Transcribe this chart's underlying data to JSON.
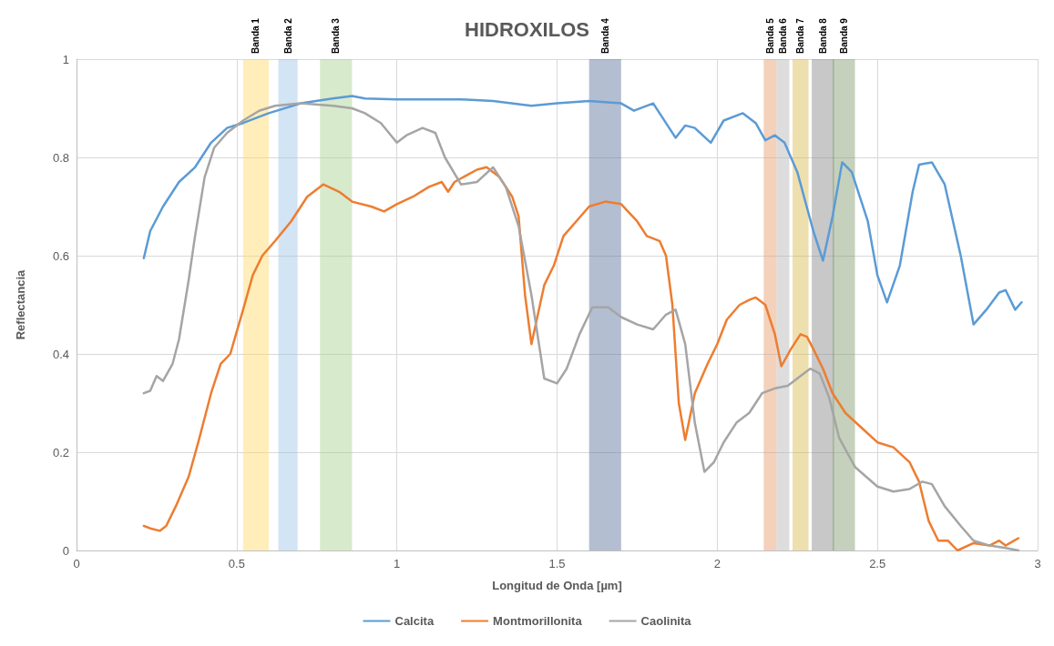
{
  "chart_data": {
    "type": "line",
    "title": "HIDROXILOS",
    "xlabel": "Longitud de Onda [µm]",
    "ylabel": "Reflectancia",
    "xlim": [
      0,
      3
    ],
    "xticks": [
      0,
      0.5,
      1,
      1.5,
      2,
      2.5,
      3
    ],
    "ylim": [
      0,
      1
    ],
    "yticks": [
      0,
      0.2,
      0.4,
      0.6,
      0.8,
      1
    ],
    "grid": true,
    "legend": "bottom",
    "line_style": "solid",
    "marker": "none",
    "bands": [
      {
        "axis": "x",
        "from": 0.52,
        "to": 0.6,
        "label": "Banda 1",
        "color": "#ffd966"
      },
      {
        "axis": "x",
        "from": 0.63,
        "to": 0.69,
        "label": "Banda 2",
        "color": "#9dc3e6"
      },
      {
        "axis": "x",
        "from": 0.76,
        "to": 0.86,
        "label": "Banda 3",
        "color": "#a9d18e"
      },
      {
        "axis": "x",
        "from": 1.6,
        "to": 1.7,
        "label": "Banda 4",
        "color": "#596f99"
      },
      {
        "axis": "x",
        "from": 2.145,
        "to": 2.185,
        "label": "Banda 5",
        "color": "#e59a68"
      },
      {
        "axis": "x",
        "from": 2.185,
        "to": 2.225,
        "label": "Banda 6",
        "color": "#b4b4b4"
      },
      {
        "axis": "x",
        "from": 2.235,
        "to": 2.285,
        "label": "Banda 7",
        "color": "#d9b84e"
      },
      {
        "axis": "x",
        "from": 2.295,
        "to": 2.365,
        "label": "Banda 8",
        "color": "#858585"
      },
      {
        "axis": "x",
        "from": 2.36,
        "to": 2.43,
        "label": "Banda 9",
        "color": "#7f9a6a"
      }
    ],
    "series": [
      {
        "name": "Calcita",
        "color": "#5b9bd5",
        "x": [
          0.21,
          0.23,
          0.27,
          0.32,
          0.37,
          0.42,
          0.47,
          0.52,
          0.6,
          0.7,
          0.8,
          0.86,
          0.9,
          1.0,
          1.2,
          1.3,
          1.42,
          1.5,
          1.6,
          1.7,
          1.74,
          1.8,
          1.87,
          1.9,
          1.93,
          1.98,
          2.02,
          2.08,
          2.12,
          2.15,
          2.18,
          2.21,
          2.25,
          2.3,
          2.33,
          2.36,
          2.39,
          2.42,
          2.47,
          2.5,
          2.53,
          2.57,
          2.61,
          2.63,
          2.67,
          2.71,
          2.76,
          2.8,
          2.84,
          2.88,
          2.9,
          2.93,
          2.95
        ],
        "values": [
          0.595,
          0.65,
          0.7,
          0.75,
          0.78,
          0.83,
          0.86,
          0.87,
          0.89,
          0.91,
          0.92,
          0.925,
          0.92,
          0.918,
          0.918,
          0.915,
          0.905,
          0.91,
          0.915,
          0.91,
          0.895,
          0.91,
          0.84,
          0.865,
          0.86,
          0.83,
          0.875,
          0.89,
          0.87,
          0.835,
          0.845,
          0.83,
          0.77,
          0.65,
          0.59,
          0.68,
          0.79,
          0.77,
          0.67,
          0.56,
          0.505,
          0.58,
          0.73,
          0.785,
          0.79,
          0.745,
          0.6,
          0.46,
          0.49,
          0.525,
          0.53,
          0.49,
          0.505
        ]
      },
      {
        "name": "Montmorillonita",
        "color": "#ed7d31",
        "x": [
          0.21,
          0.23,
          0.26,
          0.28,
          0.31,
          0.35,
          0.38,
          0.42,
          0.45,
          0.48,
          0.52,
          0.55,
          0.58,
          0.62,
          0.67,
          0.72,
          0.77,
          0.82,
          0.86,
          0.92,
          0.96,
          1.0,
          1.05,
          1.1,
          1.14,
          1.16,
          1.18,
          1.25,
          1.28,
          1.32,
          1.36,
          1.38,
          1.4,
          1.42,
          1.44,
          1.46,
          1.49,
          1.52,
          1.56,
          1.6,
          1.65,
          1.7,
          1.75,
          1.78,
          1.82,
          1.84,
          1.86,
          1.88,
          1.9,
          1.93,
          1.97,
          2.0,
          2.03,
          2.07,
          2.1,
          2.12,
          2.15,
          2.18,
          2.2,
          2.23,
          2.26,
          2.28,
          2.3,
          2.33,
          2.36,
          2.4,
          2.45,
          2.5,
          2.55,
          2.6,
          2.63,
          2.66,
          2.69,
          2.72,
          2.75,
          2.8,
          2.85,
          2.88,
          2.9,
          2.94
        ],
        "values": [
          0.05,
          0.045,
          0.04,
          0.05,
          0.09,
          0.15,
          0.22,
          0.32,
          0.38,
          0.4,
          0.49,
          0.56,
          0.6,
          0.63,
          0.67,
          0.72,
          0.745,
          0.73,
          0.71,
          0.7,
          0.69,
          0.705,
          0.72,
          0.74,
          0.75,
          0.73,
          0.75,
          0.775,
          0.78,
          0.76,
          0.72,
          0.68,
          0.52,
          0.42,
          0.48,
          0.54,
          0.58,
          0.64,
          0.67,
          0.7,
          0.71,
          0.705,
          0.67,
          0.64,
          0.63,
          0.6,
          0.5,
          0.3,
          0.225,
          0.32,
          0.38,
          0.42,
          0.47,
          0.5,
          0.51,
          0.515,
          0.5,
          0.44,
          0.375,
          0.41,
          0.44,
          0.435,
          0.41,
          0.37,
          0.32,
          0.28,
          0.25,
          0.22,
          0.21,
          0.18,
          0.14,
          0.06,
          0.02,
          0.02,
          0.0,
          0.015,
          0.01,
          0.02,
          0.01,
          0.025
        ]
      },
      {
        "name": "Caolinita",
        "color": "#a5a5a5",
        "x": [
          0.21,
          0.23,
          0.25,
          0.27,
          0.3,
          0.32,
          0.35,
          0.37,
          0.4,
          0.43,
          0.47,
          0.52,
          0.57,
          0.62,
          0.7,
          0.8,
          0.86,
          0.9,
          0.95,
          1.0,
          1.03,
          1.08,
          1.12,
          1.15,
          1.2,
          1.25,
          1.3,
          1.34,
          1.38,
          1.42,
          1.46,
          1.5,
          1.53,
          1.57,
          1.61,
          1.66,
          1.7,
          1.75,
          1.8,
          1.84,
          1.87,
          1.9,
          1.93,
          1.96,
          1.99,
          2.02,
          2.06,
          2.1,
          2.14,
          2.18,
          2.22,
          2.26,
          2.29,
          2.32,
          2.35,
          2.38,
          2.43,
          2.5,
          2.55,
          2.6,
          2.64,
          2.67,
          2.71,
          2.76,
          2.8,
          2.85,
          2.9,
          2.94
        ],
        "values": [
          0.32,
          0.325,
          0.355,
          0.345,
          0.38,
          0.43,
          0.55,
          0.64,
          0.76,
          0.82,
          0.85,
          0.875,
          0.895,
          0.905,
          0.91,
          0.905,
          0.9,
          0.89,
          0.87,
          0.83,
          0.845,
          0.86,
          0.85,
          0.8,
          0.745,
          0.75,
          0.78,
          0.74,
          0.66,
          0.52,
          0.35,
          0.34,
          0.37,
          0.44,
          0.495,
          0.495,
          0.475,
          0.46,
          0.45,
          0.48,
          0.49,
          0.42,
          0.26,
          0.16,
          0.18,
          0.22,
          0.26,
          0.28,
          0.32,
          0.33,
          0.335,
          0.355,
          0.37,
          0.36,
          0.31,
          0.23,
          0.17,
          0.13,
          0.12,
          0.125,
          0.14,
          0.135,
          0.09,
          0.05,
          0.02,
          0.01,
          0.005,
          0.0
        ]
      }
    ]
  }
}
